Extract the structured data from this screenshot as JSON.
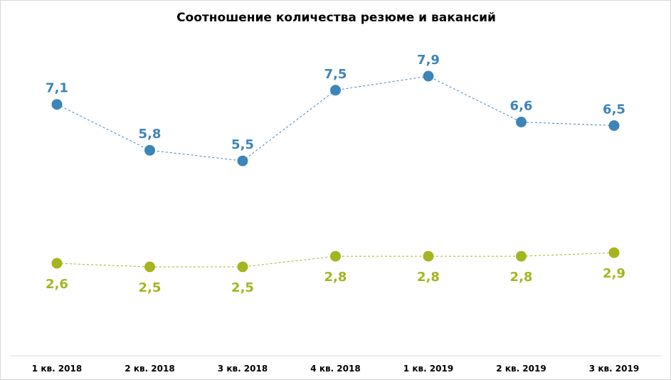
{
  "chart_data": {
    "type": "line",
    "title": "Соотношение  количества резюме и вакансий",
    "categories": [
      "1 кв. 2018",
      "2 кв. 2018",
      "3 кв. 2018",
      "4 кв. 2018",
      "1 кв. 2019",
      "2 кв. 2019",
      "3 кв. 2019"
    ],
    "series": [
      {
        "values": [
          7.1,
          5.8,
          5.5,
          7.5,
          7.9,
          6.6,
          6.5
        ],
        "labels": [
          "7,1",
          "5,8",
          "5,5",
          "7,5",
          "7,9",
          "6,6",
          "6,5"
        ],
        "color": "#3d85b8",
        "label_position": "above"
      },
      {
        "values": [
          2.6,
          2.5,
          2.5,
          2.8,
          2.8,
          2.8,
          2.9
        ],
        "labels": [
          "2,6",
          "2,5",
          "2,5",
          "2,8",
          "2,8",
          "2,8",
          "2,9"
        ],
        "color": "#a4b51f",
        "label_position": "below"
      }
    ],
    "line_style": "dashed",
    "grid": false,
    "legend": "none"
  }
}
